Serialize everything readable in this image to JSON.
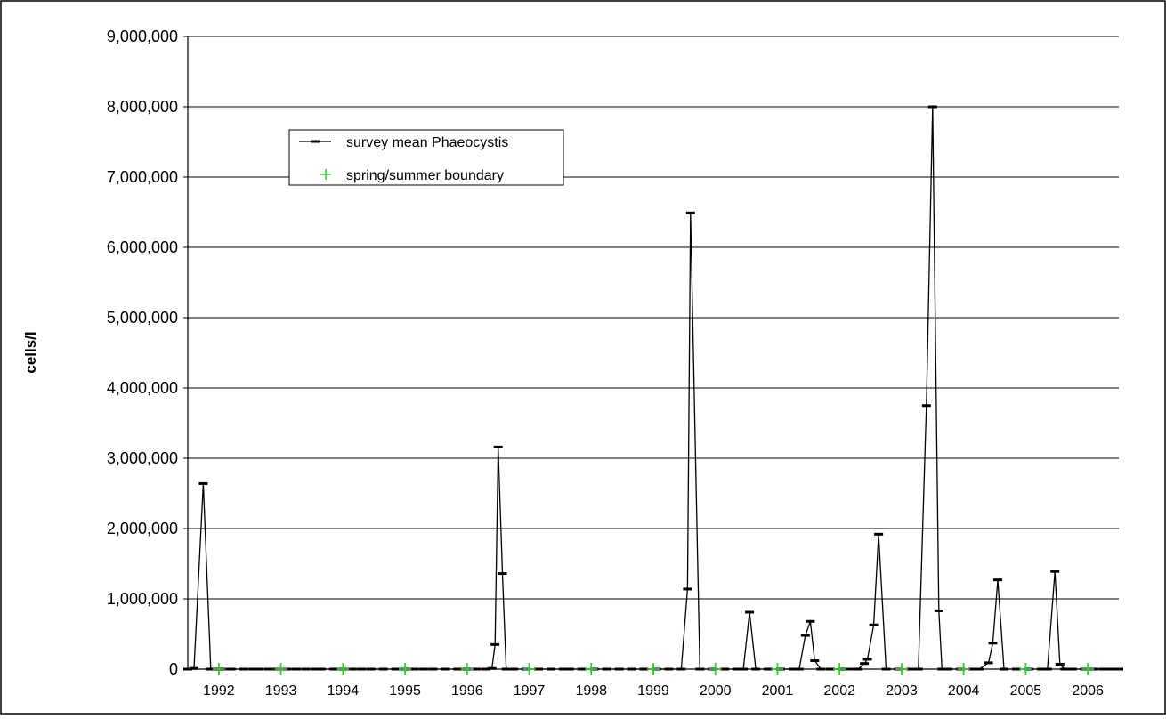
{
  "chart_data": {
    "type": "line",
    "title": "",
    "xlabel": "",
    "ylabel": "cells/l",
    "ylim": [
      0,
      9000000
    ],
    "yticks": [
      "0",
      "1,000,000",
      "2,000,000",
      "3,000,000",
      "4,000,000",
      "5,000,000",
      "6,000,000",
      "7,000,000",
      "8,000,000",
      "9,000,000"
    ],
    "x_range": [
      1991.85,
      2006.85
    ],
    "categories": [
      "1992",
      "1993",
      "1994",
      "1995",
      "1996",
      "1997",
      "1998",
      "1999",
      "2000",
      "2001",
      "2002",
      "2003",
      "2004",
      "2005",
      "2006"
    ],
    "grid": "horizontal",
    "legend_position": "top-left",
    "legend": [
      "survey mean Phaeocystis",
      "spring/summer boundary"
    ],
    "colors": {
      "series": "#000000",
      "boundary": "#33cc33",
      "grid": "#000000"
    },
    "series": [
      {
        "name": "survey mean Phaeocystis",
        "marker": "dash",
        "x": [
          1991.85,
          1991.95,
          1992.1,
          1992.22,
          1992.3,
          1992.4,
          1992.55,
          1992.75,
          1992.9,
          1993.0,
          1993.15,
          1993.3,
          1993.45,
          1993.6,
          1993.75,
          1993.9,
          1994.0,
          1994.2,
          1994.35,
          1994.5,
          1994.65,
          1994.8,
          1995.0,
          1995.2,
          1995.35,
          1995.5,
          1995.65,
          1995.8,
          1996.0,
          1996.2,
          1996.35,
          1996.5,
          1996.65,
          1996.75,
          1996.8,
          1996.85,
          1996.92,
          1996.98,
          1997.1,
          1997.3,
          1997.5,
          1997.7,
          1997.9,
          1998.0,
          1998.2,
          1998.4,
          1998.6,
          1998.8,
          1999.0,
          1999.2,
          1999.4,
          1999.6,
          1999.8,
          1999.9,
          1999.95,
          2000.1,
          2000.3,
          2000.5,
          2000.7,
          2000.8,
          2000.9,
          2001.0,
          2001.2,
          2001.4,
          2001.6,
          2001.7,
          2001.8,
          2001.88,
          2001.95,
          2002.05,
          2002.2,
          2002.4,
          2002.55,
          2002.65,
          2002.75,
          2002.8,
          2002.9,
          2002.98,
          2003.1,
          2003.3,
          2003.5,
          2003.62,
          2003.75,
          2003.85,
          2003.95,
          2004.0,
          2004.1,
          2004.3,
          2004.5,
          2004.6,
          2004.75,
          2004.82,
          2004.9,
          2005.0,
          2005.2,
          2005.4,
          2005.6,
          2005.7,
          2005.82,
          2005.9,
          2005.98,
          2006.1,
          2006.3,
          2006.45,
          2006.6,
          2006.72,
          2006.85
        ],
        "values": [
          0,
          10000,
          2640000,
          0,
          0,
          0,
          0,
          0,
          0,
          0,
          0,
          0,
          0,
          0,
          0,
          0,
          0,
          0,
          0,
          0,
          0,
          0,
          0,
          0,
          0,
          0,
          0,
          0,
          0,
          0,
          0,
          0,
          0,
          10000,
          350000,
          3160000,
          1360000,
          0,
          0,
          0,
          0,
          0,
          0,
          0,
          0,
          0,
          0,
          0,
          0,
          0,
          0,
          0,
          0,
          1140000,
          6490000,
          0,
          0,
          0,
          0,
          0,
          810000,
          0,
          0,
          0,
          0,
          0,
          480000,
          680000,
          120000,
          0,
          0,
          0,
          0,
          0,
          80000,
          140000,
          630000,
          1920000,
          0,
          0,
          0,
          0,
          3750000,
          8000000,
          830000,
          0,
          0,
          0,
          0,
          0,
          90000,
          370000,
          1270000,
          0,
          0,
          0,
          0,
          0,
          1390000,
          70000,
          0,
          0,
          0,
          0,
          0,
          0,
          0
        ]
      },
      {
        "name": "spring/summer boundary",
        "marker": "plus",
        "x": [
          1992.35,
          1993.35,
          1994.35,
          1995.35,
          1996.35,
          1997.35,
          1998.35,
          1999.35,
          2000.35,
          2001.35,
          2002.35,
          2003.35,
          2004.35,
          2005.35,
          2006.35
        ],
        "values": [
          0,
          0,
          0,
          0,
          0,
          0,
          0,
          0,
          0,
          0,
          0,
          0,
          0,
          0,
          0
        ]
      }
    ]
  }
}
